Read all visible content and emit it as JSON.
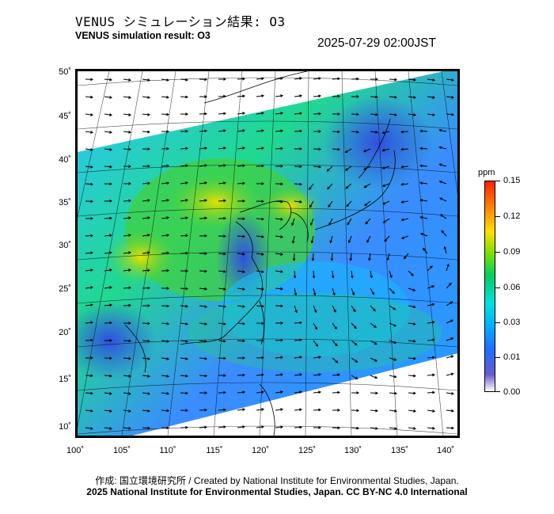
{
  "header": {
    "title_jp": "VENUS シミュレーション結果: O3",
    "title_en": "VENUS simulation result: O3",
    "timestamp": "2025-07-29 02:00JST"
  },
  "map": {
    "lat_labels": [
      "50˚",
      "45˚",
      "40˚",
      "35˚",
      "30˚",
      "25˚",
      "20˚",
      "15˚",
      "10˚"
    ],
    "lon_labels": [
      "100˚",
      "105˚",
      "110˚",
      "115˚",
      "120˚",
      "125˚",
      "130˚",
      "135˚",
      "140˚"
    ],
    "variable": "O3",
    "wind_arrows": true
  },
  "colorbar": {
    "unit": "ppm",
    "ticks": [
      "0.15",
      "0.12",
      "0.09",
      "0.06",
      "0.03",
      "0.01",
      "0.00"
    ],
    "colors": [
      "#ffffff",
      "#6a5acd",
      "#1e6fff",
      "#00b4ff",
      "#00e0e0",
      "#00d060",
      "#80e000",
      "#ffe000",
      "#ff9000",
      "#ff2000"
    ]
  },
  "footer": {
    "credit_line1": "作成: 国立環境研究所 / Created by National Institute for Environmental Studies, Japan.",
    "credit_line2": "2025 National Institute for Environmental Studies, Japan. CC BY-NC 4.0 International"
  }
}
